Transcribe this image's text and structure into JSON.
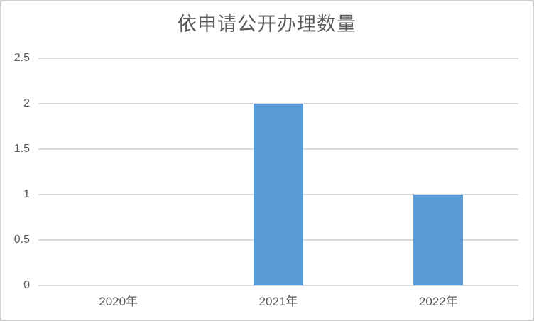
{
  "chart_data": {
    "type": "bar",
    "title": "依申请公开办理数量",
    "categories": [
      "2020年",
      "2021年",
      "2022年"
    ],
    "values": [
      0,
      2,
      1
    ],
    "xlabel": "",
    "ylabel": "",
    "ylim": [
      0,
      2.5
    ],
    "ytick_interval": 0.5,
    "yticks": [
      "0",
      "0.5",
      "1",
      "1.5",
      "2",
      "2.5"
    ],
    "grid": true,
    "legend": "none",
    "colors": {
      "bar": "#5B9BD5",
      "gridline": "#D9D9D9",
      "labels": "#595959",
      "title": "#595959",
      "border": "#D0D0D0"
    }
  }
}
